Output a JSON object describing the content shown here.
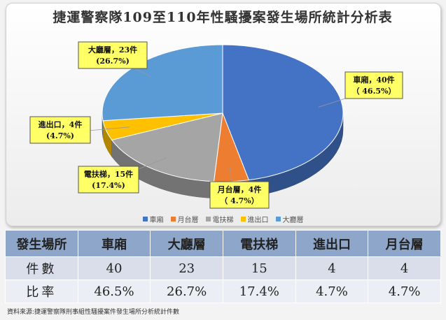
{
  "title": "捷運警察隊109至110年性騷擾案發生場所統計分析表",
  "chart_data": {
    "type": "pie",
    "title": "捷運警察隊109至110年性騷擾案發生場所統計分析表",
    "slices": [
      {
        "name": "車廂",
        "value": 40,
        "percent": "46.5%",
        "color": "#4472c4",
        "label1": "車廂，40件",
        "label2": "（ 46.5%）"
      },
      {
        "name": "月台層",
        "value": 4,
        "percent": "4.7%",
        "color": "#ed7d31",
        "label1": "月台層，4件",
        "label2": "（ 4.7%）"
      },
      {
        "name": "電扶梯",
        "value": 15,
        "percent": "17.4%",
        "color": "#a5a5a5",
        "label1": "電扶梯，15件",
        "label2": "(17.4%)"
      },
      {
        "name": "進出口",
        "value": 4,
        "percent": "4.7%",
        "color": "#ffc000",
        "label1": "進出口，4件",
        "label2": "(4.7%)"
      },
      {
        "name": "大廳層",
        "value": 23,
        "percent": "26.7%",
        "color": "#5b9bd5",
        "label1": "大廳層，23件",
        "label2": "(26.7%)"
      }
    ],
    "legend": [
      "車廂",
      "月台層",
      "電扶梯",
      "進出口",
      "大廳層"
    ],
    "legend_position": "bottom"
  },
  "table": {
    "headers": [
      "發生場所",
      "車廂",
      "大廳層",
      "電扶梯",
      "進出口",
      "月台層"
    ],
    "rows": [
      [
        "件數",
        "40",
        "23",
        "15",
        "4",
        "4"
      ],
      [
        "比率",
        "46.5%",
        "26.7%",
        "17.4%",
        "4.7%",
        "4.7%"
      ]
    ]
  },
  "source": "資料來源:捷運警察隊刑事組性騷擾案件發生場所分析統計件數"
}
